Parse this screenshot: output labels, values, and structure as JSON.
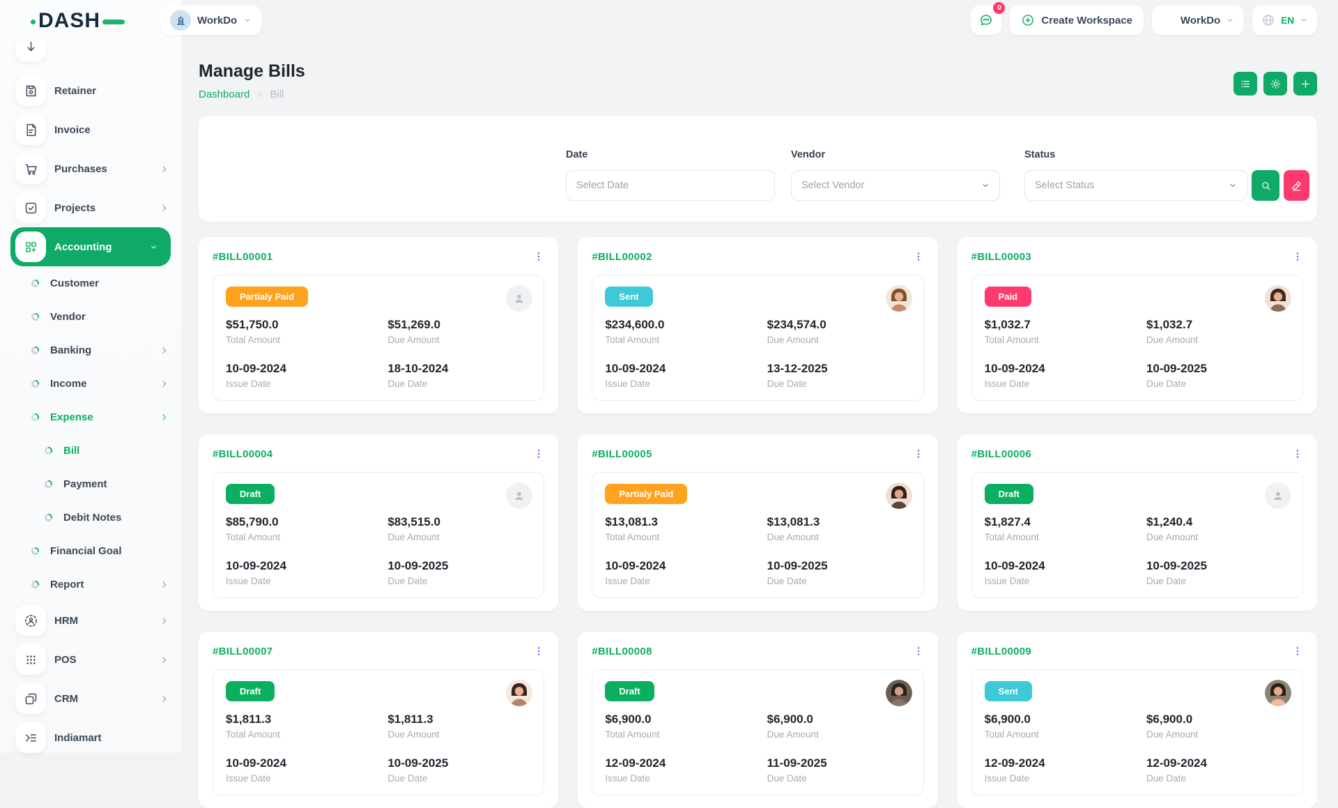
{
  "brand": {
    "logo_text": "DASH",
    "accent_green": "#0caf60",
    "logo_navy": "#16283e"
  },
  "header": {
    "workspace_label": "WorkDo",
    "notification_count": "0",
    "create_workspace_label": "Create Workspace",
    "workdo_menu_label": "WorkDo",
    "language_code": "EN",
    "icons": [
      "building-icon",
      "chat-icon",
      "plus-circle-icon",
      "grid-plus-icon",
      "globe-icon",
      "chevron-down-icon"
    ]
  },
  "page": {
    "title": "Manage Bills",
    "breadcrumb_home": "Dashboard",
    "breadcrumb_current": "Bill"
  },
  "toolbar": {
    "buttons": [
      {
        "icon": "list"
      },
      {
        "icon": "settings"
      },
      {
        "icon": "plus"
      }
    ]
  },
  "filters": {
    "date": {
      "label": "Date",
      "placeholder": "Select Date"
    },
    "vendor": {
      "label": "Vendor",
      "placeholder": "Select Vendor"
    },
    "status": {
      "label": "Status",
      "placeholder": "Select Status"
    },
    "actions": [
      {
        "icon": "search",
        "color": "#0fa968"
      },
      {
        "icon": "reset",
        "color": "#fc3a6e"
      }
    ]
  },
  "sidebar": {
    "items": [
      {
        "label": "",
        "type": "top",
        "icon": "partial",
        "partial": true
      },
      {
        "label": "Retainer",
        "type": "top",
        "icon": "retainer"
      },
      {
        "label": "Invoice",
        "type": "top",
        "icon": "invoice"
      },
      {
        "label": "Purchases",
        "type": "top",
        "icon": "purchases",
        "chevron": "right"
      },
      {
        "label": "Projects",
        "type": "top",
        "icon": "projects",
        "chevron": "right"
      },
      {
        "label": "Accounting",
        "type": "top",
        "icon": "accounting",
        "chevron": "down",
        "active": true
      },
      {
        "label": "Customer",
        "type": "sub"
      },
      {
        "label": "Vendor",
        "type": "sub"
      },
      {
        "label": "Banking",
        "type": "sub",
        "chevron": "right"
      },
      {
        "label": "Income",
        "type": "sub",
        "chevron": "right"
      },
      {
        "label": "Expense",
        "type": "sub",
        "chevron": "right",
        "green": true
      },
      {
        "label": "Bill",
        "type": "subsub",
        "green": true
      },
      {
        "label": "Payment",
        "type": "subsub"
      },
      {
        "label": "Debit Notes",
        "type": "subsub"
      },
      {
        "label": "Financial Goal",
        "type": "sub"
      },
      {
        "label": "Report",
        "type": "sub",
        "chevron": "right"
      },
      {
        "label": "HRM",
        "type": "top",
        "icon": "hrm",
        "chevron": "right"
      },
      {
        "label": "POS",
        "type": "top",
        "icon": "pos",
        "chevron": "right"
      },
      {
        "label": "CRM",
        "type": "top",
        "icon": "crm",
        "chevron": "right"
      },
      {
        "label": "Indiamart",
        "type": "top",
        "icon": "indiamart"
      }
    ]
  },
  "status_colors": {
    "Draft": "#0caf60",
    "Sent": "#3ec9d6",
    "Paid": "#ff3a6e",
    "Partialy Paid": "#ffa21d"
  },
  "bill_labels": {
    "total": "Total Amount",
    "due": "Due Amount",
    "issue": "Issue Date",
    "due_date": "Due Date"
  },
  "bills": [
    {
      "id": "#BILL00001",
      "status": "Partialy Paid",
      "total": "$51,750.0",
      "due": "$51,269.0",
      "issue_date": "10-09-2024",
      "due_date": "18-10-2024",
      "avatar": {
        "kind": "placeholder"
      }
    },
    {
      "id": "#BILL00002",
      "status": "Sent",
      "total": "$234,600.0",
      "due": "$234,574.0",
      "issue_date": "10-09-2024",
      "due_date": "13-12-2025",
      "avatar": {
        "kind": "photo",
        "bg": "#f3e6d8",
        "hair": "#7a5230",
        "skin": "#eab48f",
        "top": "#c9876a"
      }
    },
    {
      "id": "#BILL00003",
      "status": "Paid",
      "total": "$1,032.7",
      "due": "$1,032.7",
      "issue_date": "10-09-2024",
      "due_date": "10-09-2025",
      "avatar": {
        "kind": "photo",
        "bg": "#f1e2d8",
        "hair": "#3c2a20",
        "skin": "#e8b08e",
        "top": "#8d6b5a"
      }
    },
    {
      "id": "#BILL00004",
      "status": "Draft",
      "total": "$85,790.0",
      "due": "$83,515.0",
      "issue_date": "10-09-2024",
      "due_date": "10-09-2025",
      "avatar": {
        "kind": "placeholder"
      }
    },
    {
      "id": "#BILL00005",
      "status": "Partialy Paid",
      "total": "$13,081.3",
      "due": "$13,081.3",
      "issue_date": "10-09-2024",
      "due_date": "10-09-2025",
      "avatar": {
        "kind": "photo",
        "bg": "#efdfd2",
        "hair": "#2f2119",
        "skin": "#e2a586",
        "top": "#5d4638"
      }
    },
    {
      "id": "#BILL00006",
      "status": "Draft",
      "total": "$1,827.4",
      "due": "$1,240.4",
      "issue_date": "10-09-2024",
      "due_date": "10-09-2025",
      "avatar": {
        "kind": "placeholder"
      }
    },
    {
      "id": "#BILL00007",
      "status": "Draft",
      "total": "$1,811.3",
      "due": "$1,811.3",
      "issue_date": "10-09-2024",
      "due_date": "10-09-2025",
      "avatar": {
        "kind": "photo",
        "bg": "#f6e8de",
        "hair": "#35241c",
        "skin": "#eab494",
        "top": "#b5836b"
      }
    },
    {
      "id": "#BILL00008",
      "status": "Draft",
      "total": "$6,900.0",
      "due": "$6,900.0",
      "issue_date": "12-09-2024",
      "due_date": "11-09-2025",
      "avatar": {
        "kind": "photo",
        "bg": "#6b5d52",
        "hair": "#2b2018",
        "skin": "#caa189",
        "top": "#8a7462"
      }
    },
    {
      "id": "#BILL00009",
      "status": "Sent",
      "total": "$6,900.0",
      "due": "$6,900.0",
      "issue_date": "12-09-2024",
      "due_date": "12-09-2024",
      "avatar": {
        "kind": "photo",
        "bg": "#8c8478",
        "hair": "#2c2014",
        "skin": "#e5ac8d",
        "top": "#f0b9a0"
      }
    }
  ]
}
